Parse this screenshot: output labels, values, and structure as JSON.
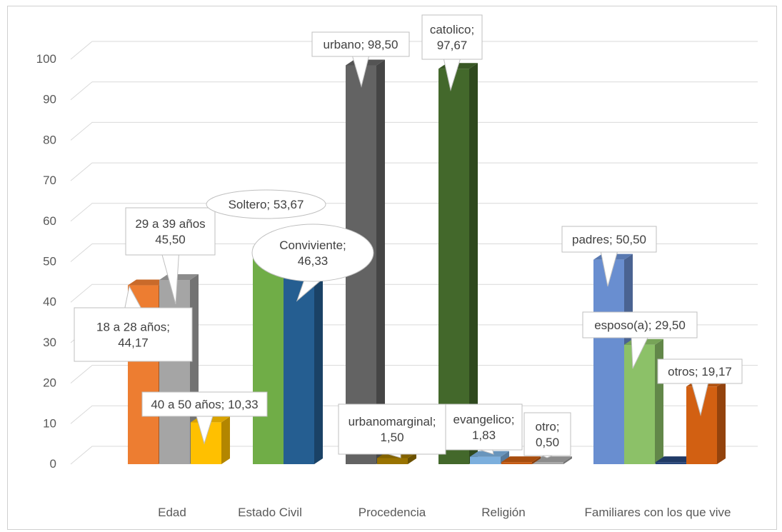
{
  "chart_data": {
    "type": "bar",
    "title": "",
    "xlabel": "",
    "ylabel": "",
    "ylim": [
      0,
      100
    ],
    "yticks": [
      0,
      10,
      20,
      30,
      40,
      50,
      60,
      70,
      80,
      90,
      100
    ],
    "grid": true,
    "legend": "none",
    "three_d": true,
    "groups": [
      {
        "category": "Edad",
        "bars": [
          {
            "label": "18 a 28 años",
            "value": 44.17,
            "display": "18 a 28 años;\n44,17",
            "color": "#ed7d31"
          },
          {
            "label": "29 a 39 años",
            "value": 45.5,
            "display": "29 a 39 años\n45,50",
            "color": "#a5a5a5"
          },
          {
            "label": "40 a 50 años",
            "value": 10.33,
            "display": "40 a 50 años; 10,33",
            "color": "#ffc000"
          }
        ]
      },
      {
        "category": "Estado Civil",
        "bars": [
          {
            "label": "Soltero",
            "value": 53.67,
            "display": "Soltero; 53,67",
            "color": "#70ad47"
          },
          {
            "label": "Conviviente",
            "value": 46.33,
            "display": "Conviviente;\n46,33",
            "color": "#255e91"
          }
        ]
      },
      {
        "category": "Procedencia",
        "bars": [
          {
            "label": "urbano",
            "value": 98.5,
            "display": "urbano; 98,50",
            "color": "#636363"
          },
          {
            "label": "urbanomarginal",
            "value": 1.5,
            "display": "urbanomarginal;\n1,50",
            "color": "#997300"
          }
        ]
      },
      {
        "category": "Religión",
        "bars": [
          {
            "label": "catolico",
            "value": 97.67,
            "display": "catolico;\n97,67",
            "color": "#43682b"
          },
          {
            "label": "evangelico",
            "value": 1.83,
            "display": "evangelico;\n1,83",
            "color": "#7cafdd"
          },
          {
            "label": "otro",
            "value": 0.5,
            "display": "otro;\n0,50",
            "color": "#a5a5a5"
          }
        ]
      },
      {
        "category": "Familiares con los que vive",
        "bars": [
          {
            "label": "padres",
            "value": 50.5,
            "display": "padres; 50,50",
            "color": "#698ed0"
          },
          {
            "label": "esposo(a)",
            "value": 29.5,
            "display": "esposo(a); 29,50",
            "color": "#8cc168"
          },
          {
            "label": "",
            "value": 0.5,
            "display": "",
            "color": "#264478"
          },
          {
            "label": "otros",
            "value": 19.17,
            "display": "otros; 19,17",
            "color": "#d26012"
          }
        ]
      }
    ],
    "extra_bars": [
      {
        "group": "Religión",
        "value": 0.5,
        "color": "#c55a11"
      }
    ]
  }
}
